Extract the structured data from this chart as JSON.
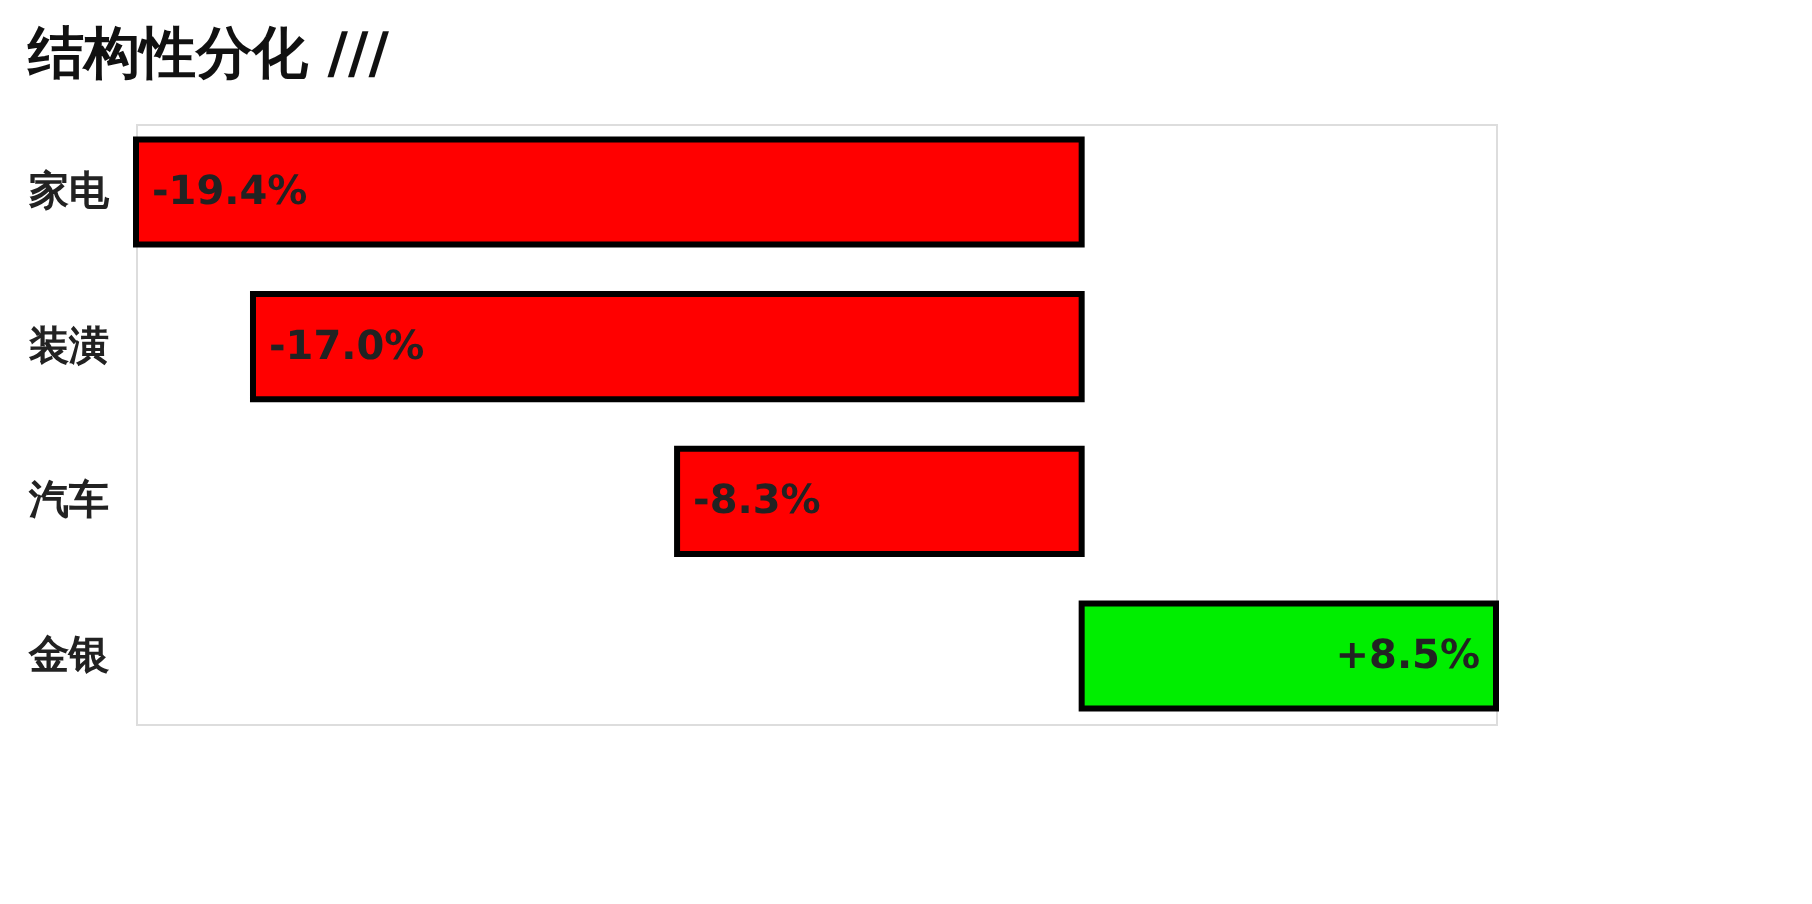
{
  "chart_data": {
    "type": "bar",
    "orientation": "horizontal",
    "title": "结构性分化 ///",
    "categories": [
      "家电",
      "装潢",
      "汽车",
      "金银"
    ],
    "values": [
      -19.4,
      -17.0,
      -8.3,
      8.5
    ],
    "colors": [
      "#ff0000",
      "#ff0000",
      "#ff0000",
      "#00ee00"
    ],
    "value_labels": [
      "-19.4%",
      "-17.0%",
      "-8.3%",
      "+8.5%"
    ],
    "tick_labels": "y"
  }
}
